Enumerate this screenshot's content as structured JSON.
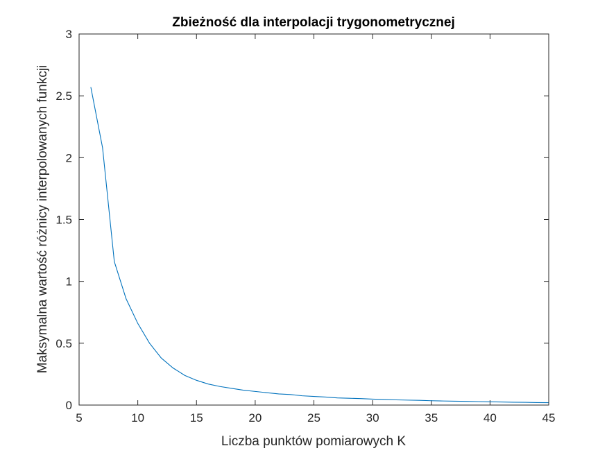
{
  "chart_data": {
    "type": "line",
    "title": "Zbieżność dla interpolacji trygonometrycznej",
    "xlabel": "Liczba punktów pomiarowych K",
    "ylabel": "Maksymalna wartość różnicy interpolowanych funkcji",
    "xlim": [
      5,
      45
    ],
    "ylim": [
      0,
      3
    ],
    "xticks": [
      "5",
      "10",
      "15",
      "20",
      "25",
      "30",
      "35",
      "40",
      "45"
    ],
    "yticks": [
      "0",
      "0.5",
      "1",
      "1.5",
      "2",
      "2.5",
      "3"
    ],
    "grid": false,
    "line_color": "#0072BD",
    "series": [
      {
        "x": [
          6,
          7,
          8,
          9,
          10,
          11,
          12,
          13,
          14,
          15,
          16,
          17,
          18,
          19,
          20,
          21,
          22,
          23,
          24,
          25,
          26,
          27,
          28,
          29,
          30,
          31,
          32,
          33,
          34,
          35,
          36,
          37,
          38,
          39,
          40,
          41,
          42,
          43,
          44,
          45
        ],
        "y": [
          2.57,
          2.08,
          1.16,
          0.86,
          0.66,
          0.5,
          0.38,
          0.3,
          0.24,
          0.2,
          0.17,
          0.15,
          0.135,
          0.12,
          0.11,
          0.1,
          0.09,
          0.085,
          0.075,
          0.07,
          0.065,
          0.058,
          0.055,
          0.052,
          0.048,
          0.045,
          0.042,
          0.04,
          0.038,
          0.035,
          0.033,
          0.031,
          0.03,
          0.028,
          0.026,
          0.025,
          0.023,
          0.022,
          0.02,
          0.019
        ]
      }
    ]
  }
}
